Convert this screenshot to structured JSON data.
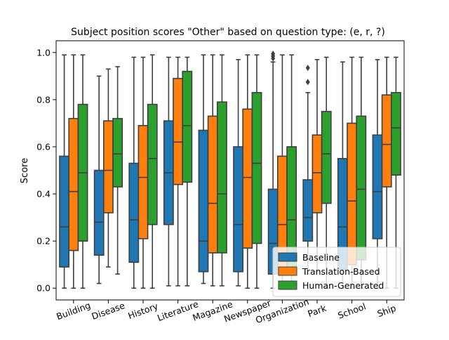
{
  "chart_data": {
    "type": "boxplot",
    "title": "Subject position scores \"Other\" based on question type: (e, r, ?)",
    "xlabel": "",
    "ylabel": "Score",
    "ylim": [
      -0.05,
      1.05
    ],
    "yticks": [
      "0.0",
      "0.2",
      "0.4",
      "0.6",
      "0.8",
      "1.0"
    ],
    "categories": [
      "Building",
      "Disease",
      "History",
      "Literature",
      "Magazine",
      "Newspaper",
      "Organization",
      "Park",
      "School",
      "Ship"
    ],
    "legend_position": "lower-right",
    "series": [
      {
        "name": "Baseline",
        "color": "#1f77b4",
        "boxes": [
          {
            "whislo": 0.0,
            "q1": 0.09,
            "med": 0.26,
            "q3": 0.56,
            "whishi": 0.99,
            "fliers": []
          },
          {
            "whislo": 0.02,
            "q1": 0.14,
            "med": 0.28,
            "q3": 0.5,
            "whishi": 0.9,
            "fliers": []
          },
          {
            "whislo": 0.0,
            "q1": 0.11,
            "med": 0.29,
            "q3": 0.53,
            "whishi": 0.98,
            "fliers": []
          },
          {
            "whislo": 0.01,
            "q1": 0.27,
            "med": 0.49,
            "q3": 0.71,
            "whishi": 0.98,
            "fliers": []
          },
          {
            "whislo": 0.02,
            "q1": 0.07,
            "med": 0.2,
            "q3": 0.67,
            "whishi": 0.99,
            "fliers": []
          },
          {
            "whislo": 0.01,
            "q1": 0.07,
            "med": 0.27,
            "q3": 0.6,
            "whishi": 0.97,
            "fliers": []
          },
          {
            "whislo": 0.0,
            "q1": 0.06,
            "med": 0.19,
            "q3": 0.42,
            "whishi": 0.96,
            "fliers": [
              0.975,
              0.985,
              0.995
            ]
          },
          {
            "whislo": 0.06,
            "q1": 0.2,
            "med": 0.3,
            "q3": 0.46,
            "whishi": 0.83,
            "fliers": [
              0.875,
              0.935
            ]
          },
          {
            "whislo": 0.0,
            "q1": 0.08,
            "med": 0.26,
            "q3": 0.55,
            "whishi": 0.96,
            "fliers": []
          },
          {
            "whislo": 0.0,
            "q1": 0.21,
            "med": 0.41,
            "q3": 0.65,
            "whishi": 0.97,
            "fliers": []
          }
        ]
      },
      {
        "name": "Translation-Based",
        "color": "#ff7f0e",
        "boxes": [
          {
            "whislo": 0.0,
            "q1": 0.16,
            "med": 0.41,
            "q3": 0.72,
            "whishi": 0.99,
            "fliers": []
          },
          {
            "whislo": 0.09,
            "q1": 0.32,
            "med": 0.5,
            "q3": 0.71,
            "whishi": 0.93,
            "fliers": []
          },
          {
            "whislo": 0.0,
            "q1": 0.21,
            "med": 0.47,
            "q3": 0.69,
            "whishi": 0.98,
            "fliers": []
          },
          {
            "whislo": 0.01,
            "q1": 0.44,
            "med": 0.62,
            "q3": 0.89,
            "whishi": 0.98,
            "fliers": []
          },
          {
            "whislo": 0.01,
            "q1": 0.15,
            "med": 0.36,
            "q3": 0.73,
            "whishi": 0.99,
            "fliers": []
          },
          {
            "whislo": 0.0,
            "q1": 0.17,
            "med": 0.47,
            "q3": 0.76,
            "whishi": 0.99,
            "fliers": []
          },
          {
            "whislo": 0.0,
            "q1": 0.08,
            "med": 0.27,
            "q3": 0.56,
            "whishi": 0.99,
            "fliers": []
          },
          {
            "whislo": 0.07,
            "q1": 0.32,
            "med": 0.49,
            "q3": 0.65,
            "whishi": 0.97,
            "fliers": []
          },
          {
            "whislo": 0.0,
            "q1": 0.1,
            "med": 0.37,
            "q3": 0.7,
            "whishi": 0.98,
            "fliers": []
          },
          {
            "whislo": 0.0,
            "q1": 0.43,
            "med": 0.61,
            "q3": 0.82,
            "whishi": 0.98,
            "fliers": []
          }
        ]
      },
      {
        "name": "Human-Generated",
        "color": "#2ca02c",
        "boxes": [
          {
            "whislo": 0.0,
            "q1": 0.2,
            "med": 0.49,
            "q3": 0.78,
            "whishi": 0.99,
            "fliers": []
          },
          {
            "whislo": 0.06,
            "q1": 0.43,
            "med": 0.57,
            "q3": 0.72,
            "whishi": 0.94,
            "fliers": []
          },
          {
            "whislo": 0.0,
            "q1": 0.27,
            "med": 0.55,
            "q3": 0.78,
            "whishi": 0.99,
            "fliers": []
          },
          {
            "whislo": 0.01,
            "q1": 0.45,
            "med": 0.69,
            "q3": 0.92,
            "whishi": 0.98,
            "fliers": []
          },
          {
            "whislo": 0.01,
            "q1": 0.15,
            "med": 0.4,
            "q3": 0.79,
            "whishi": 0.99,
            "fliers": []
          },
          {
            "whislo": 0.0,
            "q1": 0.19,
            "med": 0.53,
            "q3": 0.83,
            "whishi": 0.99,
            "fliers": []
          },
          {
            "whislo": 0.0,
            "q1": 0.06,
            "med": 0.29,
            "q3": 0.6,
            "whishi": 0.99,
            "fliers": []
          },
          {
            "whislo": 0.0,
            "q1": 0.36,
            "med": 0.57,
            "q3": 0.75,
            "whishi": 0.98,
            "fliers": []
          },
          {
            "whislo": 0.0,
            "q1": 0.12,
            "med": 0.42,
            "q3": 0.73,
            "whishi": 0.98,
            "fliers": []
          },
          {
            "whislo": 0.0,
            "q1": 0.48,
            "med": 0.68,
            "q3": 0.83,
            "whishi": 0.98,
            "fliers": []
          }
        ]
      }
    ]
  }
}
